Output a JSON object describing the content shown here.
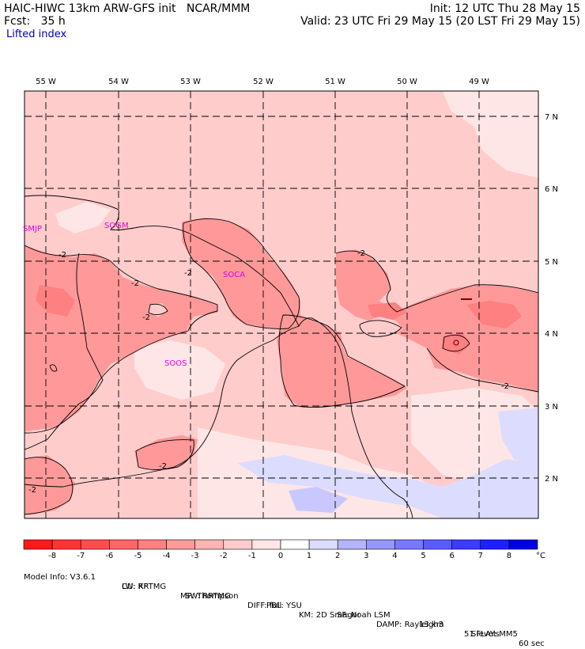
{
  "header": {
    "model": "HAIC-HIWC 13km ARW-GFS init   NCAR/MMM",
    "fcst": "Fcst:   35 h",
    "init": "Init: 12 UTC Thu 28 May 15",
    "valid": "Valid: 23 UTC Fri 29 May 15 (20 LST Fri 29 May 15)",
    "field": "Lifted index"
  },
  "map": {
    "lon_labels": [
      "55 W",
      "54 W",
      "53 W",
      "52 W",
      "51 W",
      "50 W",
      "49 W"
    ],
    "lat_labels": [
      "7 N",
      "6 N",
      "5 N",
      "4 N",
      "3 N",
      "2 N"
    ],
    "stations": [
      {
        "id": "SMJP",
        "lon_lat": "SMJP"
      },
      {
        "id": "SOGM"
      },
      {
        "id": "SOCA"
      },
      {
        "id": "SOOS"
      }
    ],
    "contour_label": "-2"
  },
  "colorbar": {
    "labels": [
      "-8",
      "-7",
      "-6",
      "-5",
      "-4",
      "-3",
      "-2",
      "-1",
      "0",
      "1",
      "2",
      "3",
      "4",
      "5",
      "6",
      "7",
      "8"
    ],
    "unit": "°C",
    "colors": [
      "#ff1a1a",
      "#ff3333",
      "#ff4d4d",
      "#ff6666",
      "#ff8080",
      "#ff9999",
      "#ffb3b3",
      "#ffcccc",
      "#ffe6e6",
      "#ffffff",
      "#dcdcff",
      "#b4b4ff",
      "#9696ff",
      "#7878ff",
      "#5a5aff",
      "#3c3cff",
      "#1e1eff",
      "#0000e6"
    ]
  },
  "footer": {
    "line1": [
      "Model Info: V3.6.1",
      "CU: KF",
      "MP: Thompson",
      "PBL: YSU",
      "SF: Noah LSM",
      "13 km",
      "51 levels",
      "60 sec"
    ],
    "line2": [
      "LW: RRTMG",
      "SW: RRTMG",
      "DIFF: full",
      "KM: 2D Smagor",
      "DAMP: Rayleigh3",
      "SFLAY: MM5"
    ]
  },
  "colors": {
    "bg_light": "#ffcccc",
    "mid": "#ff9999",
    "pale": "#ffe6e6",
    "blueish": "#dcdcff",
    "station": "#e000e0",
    "header_blue": "#0000b4"
  }
}
